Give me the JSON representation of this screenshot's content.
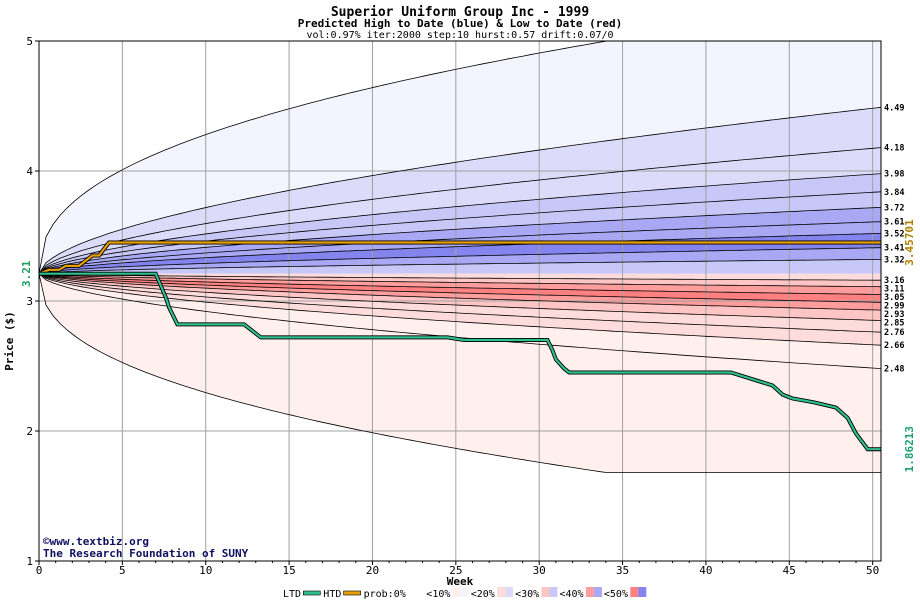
{
  "chart_data": {
    "type": "area",
    "title": "Superior Uniform Group Inc - 1999",
    "subtitle": "Predicted High to Date (blue) &  Low to Date (red)",
    "params": "vol:0.97% iter:2000 step:10 hurst:0.57 drift:0.07/0",
    "xlabel": "Week",
    "ylabel": "Price ($)",
    "xlim": [
      0,
      50.5
    ],
    "ylim": [
      1,
      5
    ],
    "xticks": [
      0,
      5,
      10,
      15,
      20,
      25,
      30,
      35,
      40,
      45,
      50
    ],
    "yticks": [
      1,
      2,
      3,
      4,
      5
    ],
    "grid": true,
    "start_price": 3.21,
    "start_price_label": "3.21",
    "band_colors": [
      "#f4f4ff",
      "#dcdcfa",
      "#c8c8f8",
      "#a8a8f4",
      "#8484ee",
      "#fff0ee",
      "#ffdcdc",
      "#ffc4c4",
      "#ff9c9c",
      "#ff8080"
    ],
    "high_quantiles": [
      4.49,
      4.18,
      3.98,
      3.84,
      3.72,
      3.61,
      3.52,
      3.41,
      3.32
    ],
    "high_quantile_labels": [
      "4.49",
      "4.18",
      "3.98",
      "3.84",
      "3.72",
      "3.61",
      "3.52",
      "3.41",
      "3.32"
    ],
    "low_quantiles": [
      3.16,
      3.11,
      3.05,
      2.99,
      2.93,
      2.85,
      2.76,
      2.66,
      2.48
    ],
    "low_quantile_labels": [
      "3.16",
      "3.11",
      "3.05",
      "2.99",
      "2.93",
      "2.85",
      "2.76",
      "2.66",
      "2.48"
    ],
    "envelope_high_end": 5.0,
    "envelope_low_end": 1.68,
    "htd_series": {
      "color": "#e8a000",
      "x": [
        0,
        0.6,
        1.2,
        1.6,
        2.4,
        3.2,
        3.6,
        4.2,
        50.5
      ],
      "y": [
        3.21,
        3.24,
        3.24,
        3.27,
        3.27,
        3.35,
        3.35,
        3.45,
        3.45
      ],
      "end_label": "3.45701"
    },
    "ltd_series": {
      "color": "#30c090",
      "x": [
        0,
        1.2,
        7,
        7.2,
        7.6,
        7.8,
        8.3,
        12.3,
        13.3,
        24.5,
        25.5,
        30.5,
        30.8,
        31,
        31.5,
        31.8,
        32.5,
        41.5,
        44,
        44.6,
        45.2,
        46.5,
        47.8,
        48.5,
        49,
        49.7,
        50.5
      ],
      "y": [
        3.21,
        3.21,
        3.21,
        3.15,
        3.03,
        2.95,
        2.82,
        2.82,
        2.72,
        2.72,
        2.7,
        2.7,
        2.62,
        2.55,
        2.48,
        2.45,
        2.45,
        2.45,
        2.35,
        2.28,
        2.25,
        2.22,
        2.18,
        2.1,
        1.98,
        1.86,
        1.86
      ],
      "end_label": "1.86213"
    },
    "legend": [
      "LTD",
      "HTD",
      "prob:0%",
      "<10%",
      "<20%",
      "<30%",
      "<40%",
      "<50%"
    ]
  },
  "footer": {
    "copyright": "©www.textbiz.org",
    "org": "The Research Foundation of SUNY"
  }
}
